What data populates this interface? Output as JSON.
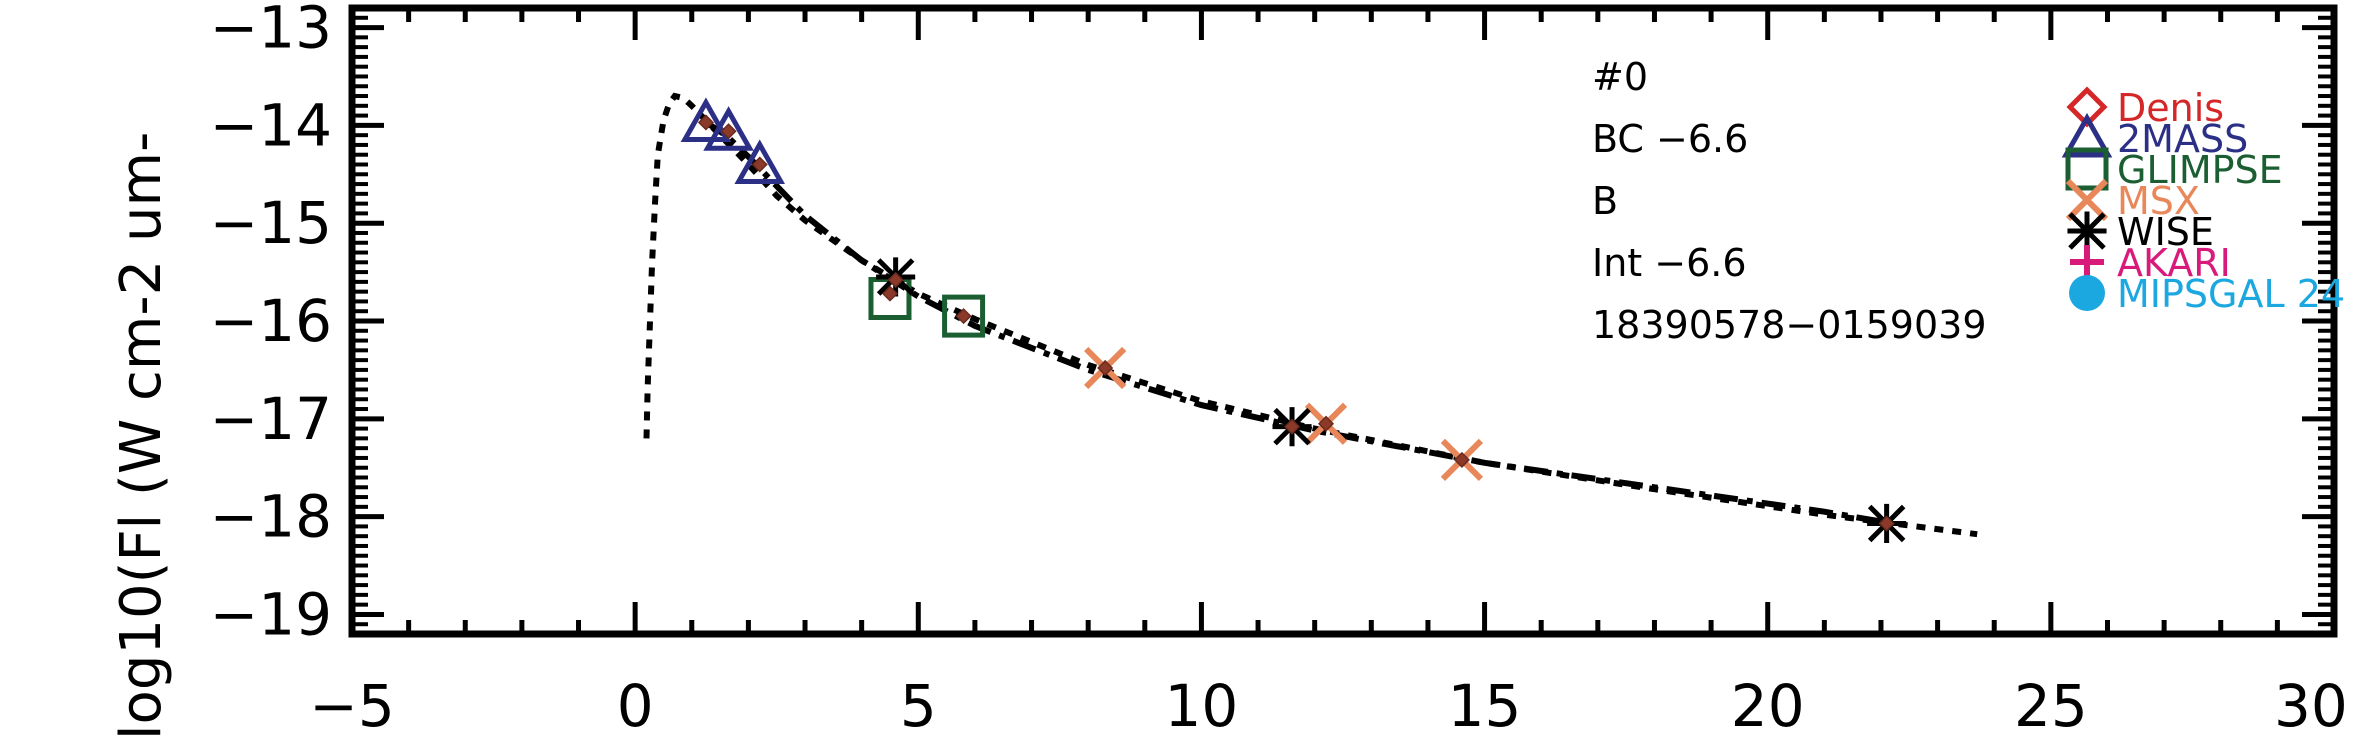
{
  "chart_data": {
    "type": "scatter",
    "title": "",
    "xlabel": "",
    "ylabel": "log10(Fl (W cm-2 um-",
    "xlim": [
      -5,
      30
    ],
    "ylim": [
      -19.2,
      -12.8
    ],
    "x_ticks": [
      -5,
      0,
      5,
      10,
      15,
      20,
      25,
      30
    ],
    "x_tick_labels": [
      "−5",
      "0",
      "5",
      "10",
      "15",
      "20",
      "25",
      "30"
    ],
    "y_ticks": [
      -19,
      -18,
      -17,
      -16,
      -15,
      -14,
      -13
    ],
    "y_tick_labels": [
      "−19",
      "−18",
      "−17",
      "−16",
      "−15",
      "−14",
      "−13"
    ],
    "annotations": [
      "#0",
      "BC  −6.6",
      "B",
      "Int  −6.6",
      "18390578−0159039"
    ],
    "legend_position": "top-right",
    "legend": [
      {
        "name": "Denis",
        "marker": "diamond",
        "color": "#d62728"
      },
      {
        "name": "2MASS",
        "marker": "triangle",
        "color": "#2b2f86"
      },
      {
        "name": "GLIMPSE",
        "marker": "square",
        "color": "#1b5e32"
      },
      {
        "name": "MSX",
        "marker": "x",
        "color": "#e8885a"
      },
      {
        "name": "WISE",
        "marker": "asterisk",
        "color": "#000000"
      },
      {
        "name": "AKARI",
        "marker": "plus",
        "color": "#d81b7a"
      },
      {
        "name": "MIPSGAL 24",
        "marker": "circle",
        "color": "#1ba7e0"
      }
    ],
    "series": [
      {
        "name": "model-dotted",
        "style": "dotted",
        "color": "#000000",
        "x": [
          0.2,
          0.22,
          0.25,
          0.3,
          0.35,
          0.4,
          0.5,
          0.6,
          0.7,
          0.85,
          1.0,
          1.2,
          1.5,
          2.0,
          2.5,
          3.0,
          4.0,
          5.0,
          6.0,
          8.0,
          10.0,
          12.0,
          15.0,
          18.0,
          21.0,
          23.7
        ],
        "y": [
          -17.2,
          -16.7,
          -16.2,
          -15.4,
          -14.8,
          -14.3,
          -13.95,
          -13.78,
          -13.7,
          -13.72,
          -13.8,
          -13.92,
          -14.1,
          -14.4,
          -14.72,
          -14.97,
          -15.38,
          -15.72,
          -15.98,
          -16.45,
          -16.82,
          -17.1,
          -17.45,
          -17.72,
          -17.98,
          -18.18
        ]
      },
      {
        "name": "model-dashdot",
        "style": "dashdot",
        "color": "#000000",
        "x": [
          1.2,
          1.6,
          2.0,
          3.0,
          4.0,
          5.0,
          6.0,
          8.0,
          10.0,
          12.0,
          15.0,
          18.0,
          21.0,
          22.2
        ],
        "y": [
          -13.95,
          -14.1,
          -14.32,
          -14.92,
          -15.38,
          -15.75,
          -16.05,
          -16.5,
          -16.86,
          -17.12,
          -17.45,
          -17.7,
          -17.95,
          -18.07
        ]
      },
      {
        "name": "Denis",
        "marker": "diamond",
        "color": "#d62728",
        "x": [],
        "y": []
      },
      {
        "name": "2MASS",
        "marker": "triangle",
        "color": "#2b2f86",
        "x": [
          1.25,
          1.65,
          2.2
        ],
        "y": [
          -13.97,
          -14.06,
          -14.4
        ]
      },
      {
        "name": "GLIMPSE",
        "marker": "square",
        "color": "#1b5e32",
        "x": [
          4.5,
          5.8
        ],
        "y": [
          -15.77,
          -15.95
        ]
      },
      {
        "name": "MSX",
        "marker": "x",
        "color": "#e8885a",
        "x": [
          8.3,
          12.2,
          14.6
        ],
        "y": [
          -16.48,
          -17.05,
          -17.42
        ]
      },
      {
        "name": "WISE",
        "marker": "asterisk",
        "color": "#000000",
        "x": [
          4.6,
          11.6,
          22.1
        ],
        "y": [
          -15.55,
          -17.08,
          -18.07
        ]
      },
      {
        "name": "AKARI",
        "marker": "plus",
        "color": "#d81b7a",
        "x": [],
        "y": []
      },
      {
        "name": "MIPSGAL 24",
        "marker": "circle",
        "color": "#1ba7e0",
        "x": [],
        "y": []
      },
      {
        "name": "model-points",
        "marker": "small-diamond",
        "color": "#8b3a2a",
        "x": [
          1.25,
          1.65,
          2.2,
          4.5,
          4.6,
          5.8,
          8.3,
          11.6,
          12.2,
          14.6,
          22.1
        ],
        "y": [
          -13.97,
          -14.06,
          -14.4,
          -15.72,
          -15.58,
          -15.95,
          -16.48,
          -17.08,
          -17.05,
          -17.42,
          -18.07
        ]
      }
    ]
  }
}
